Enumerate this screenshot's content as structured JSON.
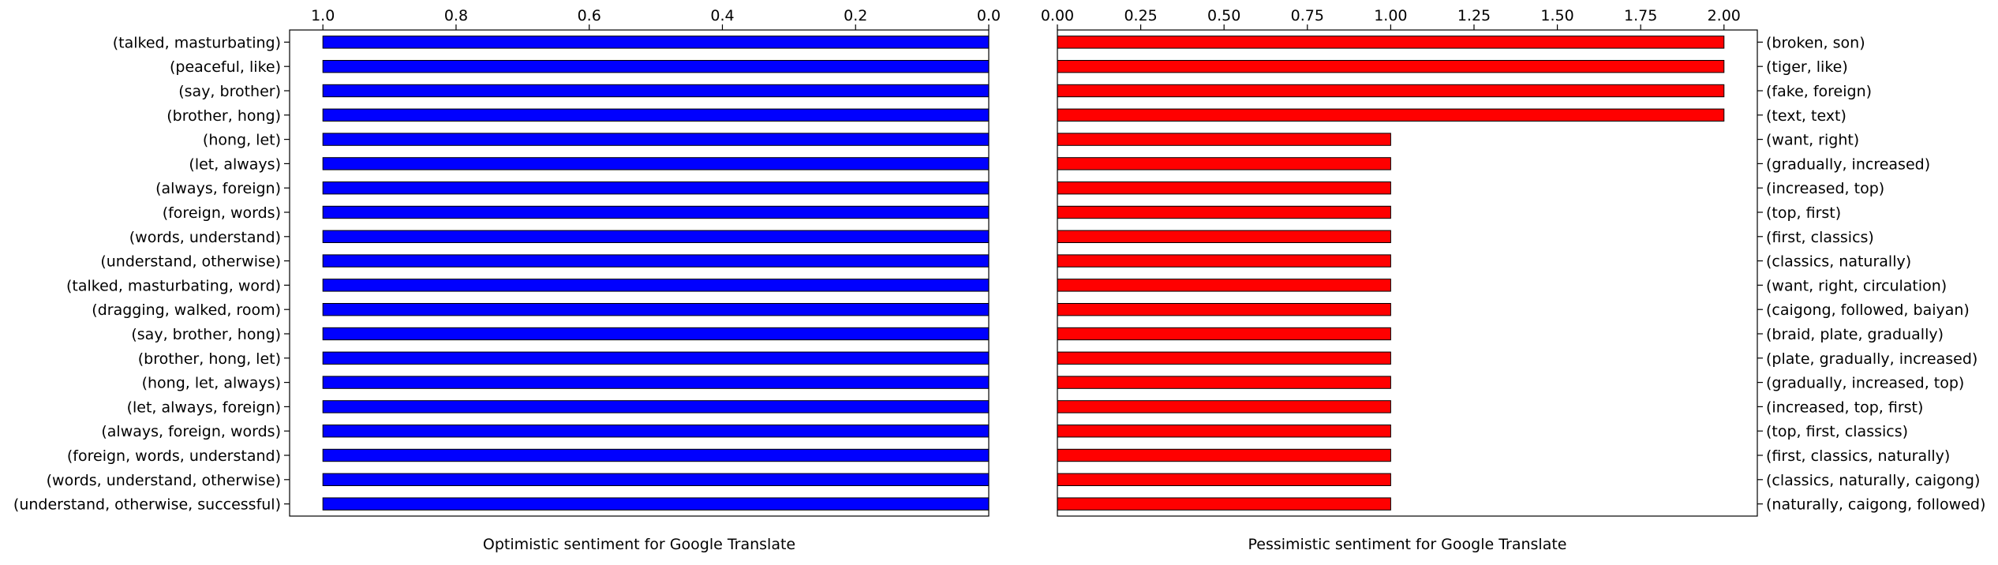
{
  "chart_data": [
    {
      "type": "bar",
      "orientation": "horizontal",
      "x_axis_direction": "reversed",
      "x_ticks_position": "top",
      "y_labels_position": "left",
      "xlim": [
        1.05,
        0
      ],
      "xticks": [
        "1.0",
        "0.8",
        "0.6",
        "0.4",
        "0.2",
        "0.0"
      ],
      "xtick_values": [
        1.0,
        0.8,
        0.6,
        0.4,
        0.2,
        0.0
      ],
      "xlabel": "Optimistic sentiment for Google Translate",
      "bar_color": "#0000ff",
      "categories": [
        "(talked, masturbating)",
        "(peaceful, like)",
        "(say, brother)",
        "(brother, hong)",
        "(hong, let)",
        "(let, always)",
        "(always, foreign)",
        "(foreign, words)",
        "(words, understand)",
        "(understand, otherwise)",
        "(talked, masturbating, word)",
        "(dragging, walked, room)",
        "(say, brother, hong)",
        "(brother, hong, let)",
        "(hong, let, always)",
        "(let, always, foreign)",
        "(always, foreign, words)",
        "(foreign, words, understand)",
        "(words, understand, otherwise)",
        "(understand, otherwise, successful)"
      ],
      "values": [
        1,
        1,
        1,
        1,
        1,
        1,
        1,
        1,
        1,
        1,
        1,
        1,
        1,
        1,
        1,
        1,
        1,
        1,
        1,
        1
      ]
    },
    {
      "type": "bar",
      "orientation": "horizontal",
      "x_axis_direction": "normal",
      "x_ticks_position": "top",
      "y_labels_position": "right",
      "xlim": [
        0,
        2.1
      ],
      "xticks": [
        "0.00",
        "0.25",
        "0.50",
        "0.75",
        "1.00",
        "1.25",
        "1.50",
        "1.75",
        "2.00"
      ],
      "xtick_values": [
        0,
        0.25,
        0.5,
        0.75,
        1.0,
        1.25,
        1.5,
        1.75,
        2.0
      ],
      "xlabel": "Pessimistic sentiment for Google Translate",
      "bar_color": "#ff0000",
      "categories": [
        "(broken, son)",
        "(tiger, like)",
        "(fake, foreign)",
        "(text, text)",
        "(want, right)",
        "(gradually, increased)",
        "(increased, top)",
        "(top, first)",
        "(first, classics)",
        "(classics, naturally)",
        "(want, right, circulation)",
        "(caigong, followed, baiyan)",
        "(braid, plate, gradually)",
        "(plate, gradually, increased)",
        "(gradually, increased, top)",
        "(increased, top, first)",
        "(top, first, classics)",
        "(first, classics, naturally)",
        "(classics, naturally, caigong)",
        "(naturally, caigong, followed)"
      ],
      "values": [
        2,
        2,
        2,
        2,
        1,
        1,
        1,
        1,
        1,
        1,
        1,
        1,
        1,
        1,
        1,
        1,
        1,
        1,
        1,
        1
      ]
    }
  ]
}
